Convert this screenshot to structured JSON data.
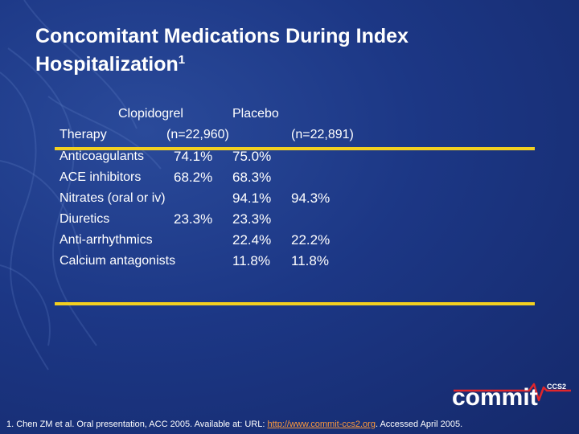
{
  "slide": {
    "title_line1": "Concomitant Medications During Index",
    "title_line2": "Hospitalization",
    "title_superscript": "1"
  },
  "table": {
    "group1_label": "Clopidogrel",
    "group2_label": "Placebo",
    "therapy_label": "Therapy",
    "group1_n": "(n=22,960)",
    "group2_n": "(n=22,891)",
    "rows": [
      {
        "name": "Anticoagulants",
        "clopidogrel": "74.1%",
        "placebo": "75.0%"
      },
      {
        "name": "ACE inhibitors",
        "clopidogrel": "68.2%",
        "placebo": "68.3%"
      },
      {
        "name": "Nitrates (oral or iv)",
        "clopidogrel": "94.1%",
        "placebo": "94.3%"
      },
      {
        "name": "Diuretics",
        "clopidogrel": "23.3%",
        "placebo": "23.3%"
      },
      {
        "name": "Anti-arrhythmics",
        "clopidogrel": "22.4%",
        "placebo": "22.2%"
      },
      {
        "name": "Calcium antagonists",
        "clopidogrel": "11.8%",
        "placebo": "11.8%"
      }
    ]
  },
  "footnote": {
    "text_before": "1. Chen ZM et al. Oral presentation, ACC 2005. Available at: URL: ",
    "link": "http://www.commit-ccs2.org",
    "text_after": ". Accessed April 2005."
  },
  "logo": {
    "text": "commit",
    "subtext": "CCS2"
  },
  "colors": {
    "background": "#1c3785",
    "rule": "#f3d020",
    "link": "#ff9a3c",
    "logo_pulse": "#e0262b"
  }
}
